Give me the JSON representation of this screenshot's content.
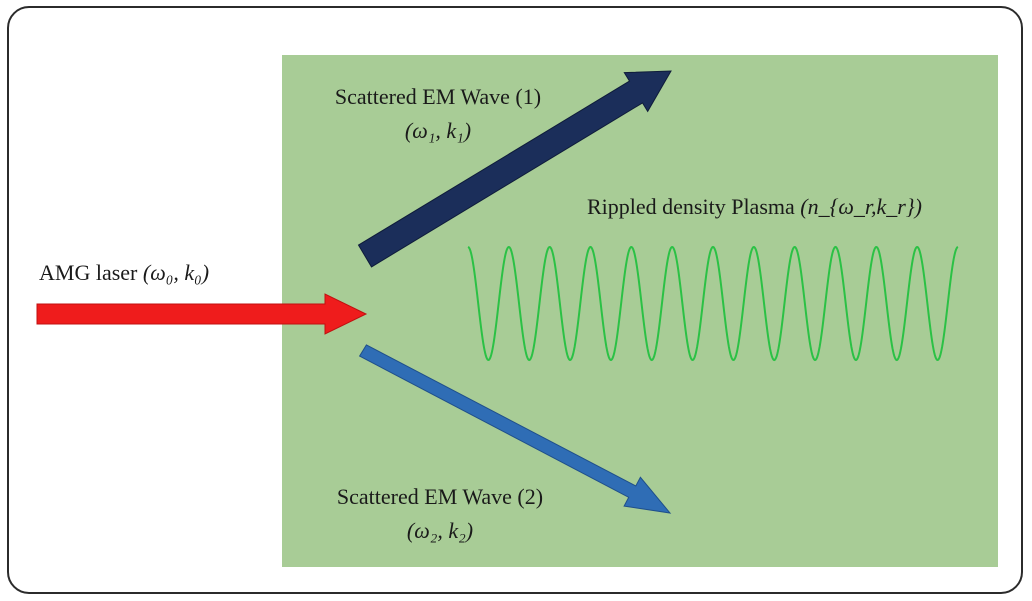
{
  "labels": {
    "laser": {
      "text": "AMG laser",
      "math": "(ω₀, k₀)"
    },
    "wave1": {
      "text": "Scattered EM Wave (1)",
      "math": "(ω₁, k₁)"
    },
    "wave2": {
      "text": "Scattered EM Wave (2)",
      "math": "(ω₂, k₂)"
    },
    "plasma": {
      "text": "Rippled density Plasma",
      "math": "(n_{ω_r,k_r})"
    }
  },
  "colors": {
    "plasma_region": "#a8cc96",
    "laser_arrow": "#ef1c1c",
    "wave1_arrow": "#1b2e5a",
    "wave2_arrow": "#2f6db5",
    "ripple": "#2bc145"
  },
  "ripple": {
    "cycles": 12
  }
}
